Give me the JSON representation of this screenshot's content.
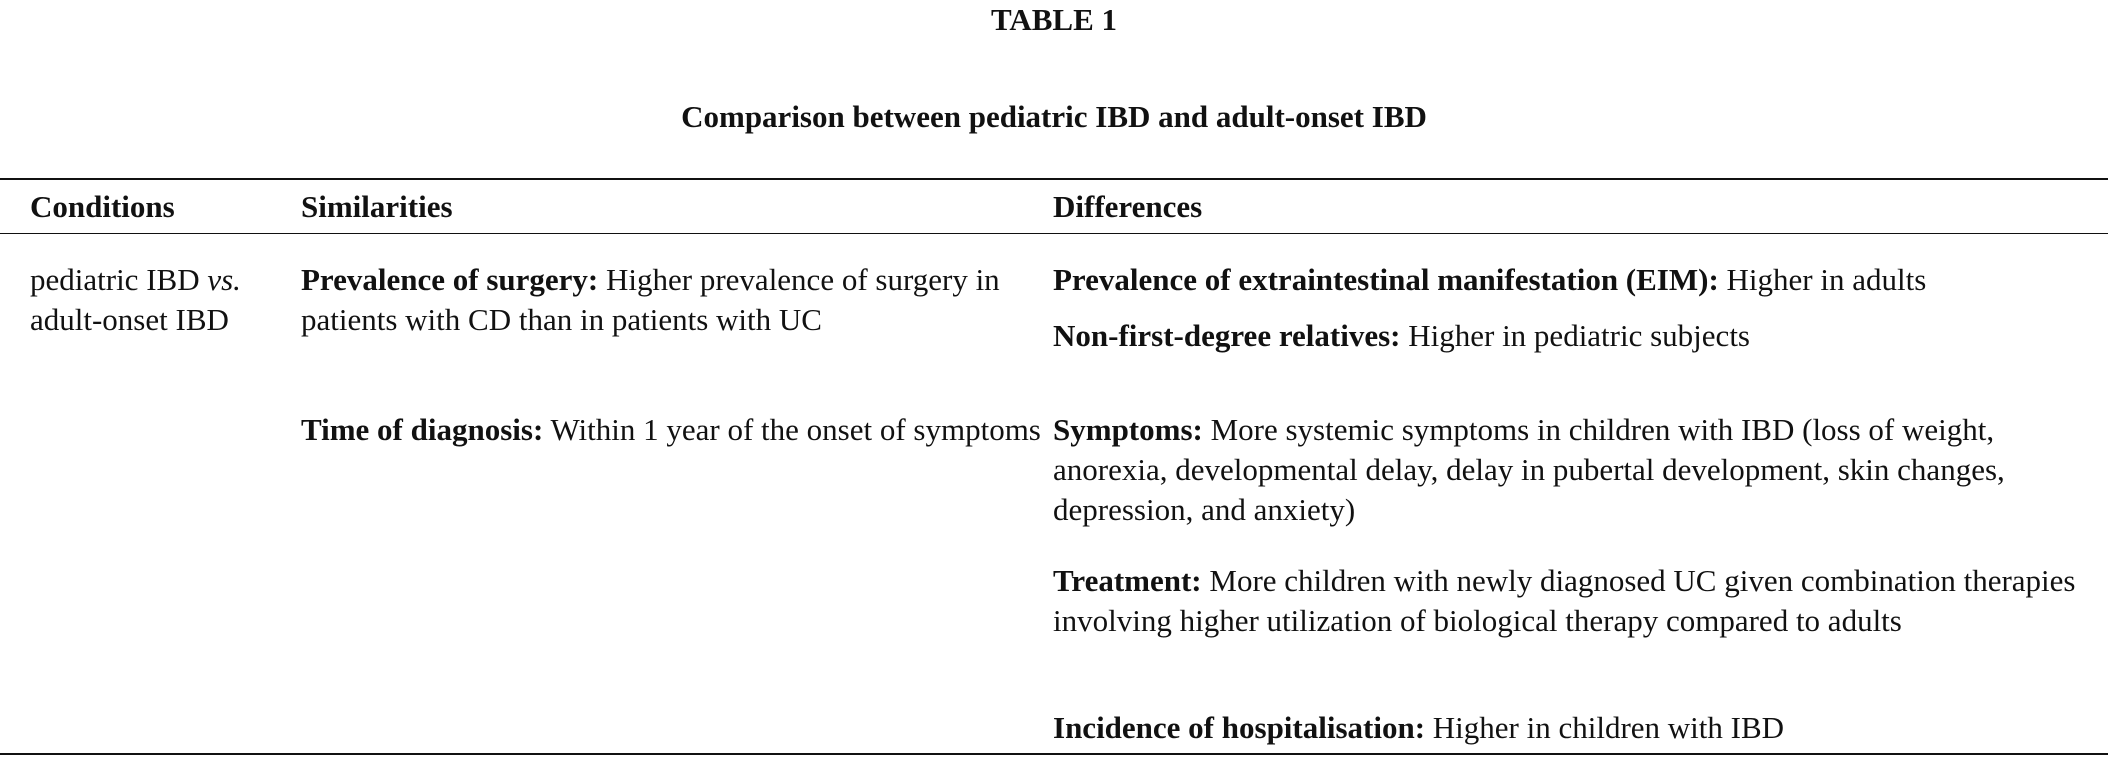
{
  "table": {
    "label": "TABLE 1",
    "title": "Comparison between pediatric IBD and adult-onset IBD",
    "headers": [
      "Conditions",
      "Similarities",
      "Differences"
    ],
    "condition": {
      "before": "pediatric IBD",
      "italic": "vs.",
      "after": "adult-onset IBD"
    },
    "similarities": [
      {
        "term": "Prevalence of surgery:",
        "text": "Higher prevalence of surgery in patients with CD than in patients with UC"
      },
      {
        "term": "Time of diagnosis:",
        "text": "Within 1 year of the onset of symptoms"
      }
    ],
    "differences": [
      {
        "term": "Prevalence of extraintestinal manifestation (EIM):",
        "text": "Higher in adults"
      },
      {
        "term": "Non-first-degree relatives:",
        "text": "Higher in pediatric subjects"
      },
      {
        "term": "Symptoms:",
        "text": "More systemic symptoms in children with IBD (loss of weight, anorexia, developmental delay, delay in pubertal development, skin changes, depression, and anxiety)"
      },
      {
        "term": "Treatment:",
        "text": "More children with newly diagnosed UC given combination therapies involving higher utilization of biological therapy compared to adults"
      },
      {
        "term": "Incidence of hospitalisation:",
        "text": "Higher in children with IBD"
      }
    ]
  }
}
